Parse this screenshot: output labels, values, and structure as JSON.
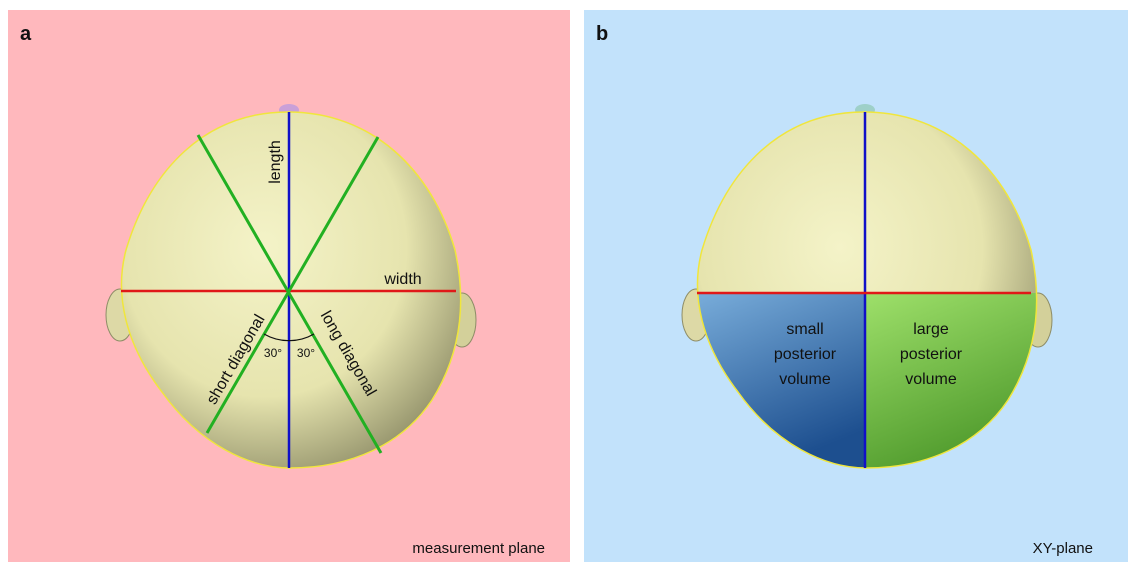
{
  "panels": [
    {
      "letter": "a",
      "annotations": {
        "length": "length",
        "width": "width",
        "short_diagonal": "short diagonal",
        "long_diagonal": "long diagonal",
        "angle_left": "30°",
        "angle_right": "30°"
      },
      "plane": "measurement plane"
    },
    {
      "letter": "b",
      "regions": [
        {
          "lines": [
            "small",
            "posterior",
            "volume"
          ]
        },
        {
          "lines": [
            "large",
            "posterior",
            "volume"
          ]
        }
      ],
      "plane": "XY-plane"
    }
  ]
}
